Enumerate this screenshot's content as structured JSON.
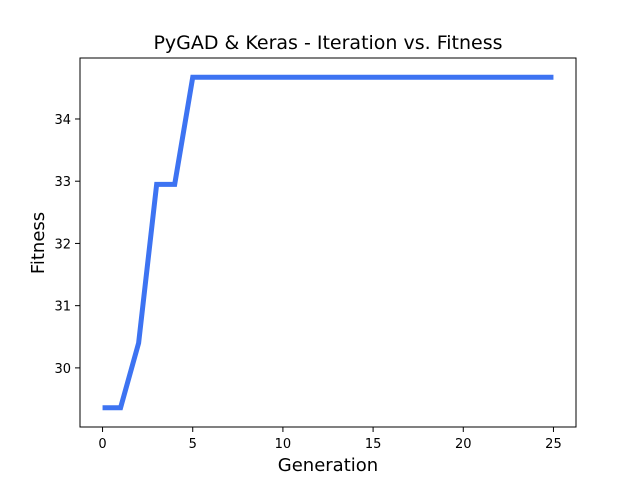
{
  "chart_data": {
    "type": "line",
    "title": "PyGAD & Keras - Iteration vs. Fitness",
    "xlabel": "Generation",
    "ylabel": "Fitness",
    "xlim": [
      -1.25,
      26.25
    ],
    "ylim": [
      29.05,
      34.98
    ],
    "xticks": [
      0,
      5,
      10,
      15,
      20,
      25
    ],
    "yticks": [
      30,
      31,
      32,
      33,
      34
    ],
    "grid": false,
    "legend": "none",
    "series": [
      {
        "color": "#3d73f2",
        "x": [
          0,
          1,
          2,
          3,
          4,
          5,
          6,
          7,
          8,
          9,
          10,
          11,
          12,
          13,
          14,
          15,
          16,
          17,
          18,
          19,
          20,
          21,
          22,
          23,
          24,
          25
        ],
        "y": [
          29.36,
          29.36,
          30.4,
          32.95,
          32.95,
          34.67,
          34.67,
          34.67,
          34.67,
          34.67,
          34.67,
          34.67,
          34.67,
          34.67,
          34.67,
          34.67,
          34.67,
          34.67,
          34.67,
          34.67,
          34.67,
          34.67,
          34.67,
          34.67,
          34.67,
          34.67
        ]
      }
    ]
  }
}
